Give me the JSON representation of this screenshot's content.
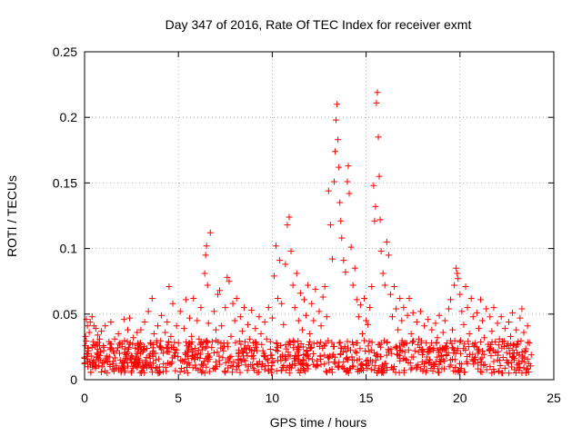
{
  "chart_data": {
    "type": "scatter",
    "title": "Day 347 of 2016, Rate Of TEC Index for receiver exmt",
    "xlabel": "GPS time / hours",
    "ylabel": "ROTI / TECUs",
    "xlim": [
      0,
      25
    ],
    "ylim": [
      0,
      0.25
    ],
    "x_ticks": [
      0,
      5,
      10,
      15,
      20,
      25
    ],
    "y_ticks": [
      0,
      0.05,
      0.1,
      0.15,
      0.2,
      0.25
    ],
    "y_tick_labels": [
      "0",
      "0.05",
      "0.1",
      "0.15",
      "0.2",
      "0.25"
    ],
    "x_tick_labels": [
      "0",
      "5",
      "10",
      "15",
      "20",
      "25"
    ],
    "grid": true,
    "marker": "plus",
    "color": "#ff0000",
    "series": [
      {
        "points": [
          [
            0.0,
            0.012
          ],
          [
            0.05,
            0.033
          ],
          [
            0.1,
            0.046
          ],
          [
            0.15,
            0.041
          ],
          [
            0.2,
            0.022
          ],
          [
            0.25,
            0.036
          ],
          [
            0.3,
            0.044
          ],
          [
            0.35,
            0.018
          ],
          [
            0.4,
            0.048
          ],
          [
            0.45,
            0.029
          ],
          [
            0.5,
            0.041
          ],
          [
            0.55,
            0.011
          ],
          [
            0.6,
            0.039
          ],
          [
            0.65,
            0.027
          ],
          [
            0.7,
            0.034
          ],
          [
            0.75,
            0.016
          ],
          [
            0.8,
            0.031
          ],
          [
            0.85,
            0.022
          ],
          [
            0.9,
            0.037
          ],
          [
            0.95,
            0.013
          ],
          [
            1.0,
            0.026
          ],
          [
            1.1,
            0.041
          ],
          [
            1.2,
            0.018
          ],
          [
            1.3,
            0.029
          ],
          [
            1.4,
            0.044
          ],
          [
            1.5,
            0.012
          ],
          [
            1.6,
            0.031
          ],
          [
            1.7,
            0.022
          ],
          [
            1.8,
            0.035
          ],
          [
            1.9,
            0.015
          ],
          [
            2.0,
            0.027
          ],
          [
            2.1,
            0.046
          ],
          [
            2.2,
            0.019
          ],
          [
            2.3,
            0.038
          ],
          [
            2.4,
            0.047
          ],
          [
            2.5,
            0.013
          ],
          [
            2.6,
            0.032
          ],
          [
            2.7,
            0.024
          ],
          [
            2.8,
            0.036
          ],
          [
            2.9,
            0.011
          ],
          [
            3.0,
            0.038
          ],
          [
            3.1,
            0.021
          ],
          [
            3.2,
            0.044
          ],
          [
            3.3,
            0.017
          ],
          [
            3.4,
            0.052
          ],
          [
            3.5,
            0.028
          ],
          [
            3.6,
            0.062
          ],
          [
            3.7,
            0.035
          ],
          [
            3.8,
            0.015
          ],
          [
            3.9,
            0.041
          ],
          [
            4.0,
            0.025
          ],
          [
            4.1,
            0.049
          ],
          [
            4.2,
            0.012
          ],
          [
            4.3,
            0.036
          ],
          [
            4.4,
            0.044
          ],
          [
            4.5,
            0.071
          ],
          [
            4.6,
            0.033
          ],
          [
            4.7,
            0.058
          ],
          [
            4.8,
            0.018
          ],
          [
            4.9,
            0.041
          ],
          [
            5.0,
            0.028
          ],
          [
            5.1,
            0.052
          ],
          [
            5.2,
            0.014
          ],
          [
            5.3,
            0.039
          ],
          [
            5.4,
            0.061
          ],
          [
            5.5,
            0.022
          ],
          [
            5.6,
            0.047
          ],
          [
            5.7,
            0.033
          ],
          [
            5.8,
            0.062
          ],
          [
            5.9,
            0.019
          ],
          [
            6.0,
            0.045
          ],
          [
            6.1,
            0.031
          ],
          [
            6.2,
            0.055
          ],
          [
            6.3,
            0.025
          ],
          [
            6.4,
            0.081
          ],
          [
            6.45,
            0.095
          ],
          [
            6.5,
            0.102
          ],
          [
            6.55,
            0.072
          ],
          [
            6.6,
            0.043
          ],
          [
            6.7,
            0.112
          ],
          [
            6.8,
            0.029
          ],
          [
            6.9,
            0.052
          ],
          [
            7.0,
            0.038
          ],
          [
            7.1,
            0.065
          ],
          [
            7.2,
            0.068
          ],
          [
            7.3,
            0.041
          ],
          [
            7.4,
            0.022
          ],
          [
            7.5,
            0.055
          ],
          [
            7.6,
            0.078
          ],
          [
            7.7,
            0.075
          ],
          [
            7.8,
            0.033
          ],
          [
            7.9,
            0.058
          ],
          [
            8.0,
            0.045
          ],
          [
            8.1,
            0.062
          ],
          [
            8.2,
            0.018
          ],
          [
            8.3,
            0.048
          ],
          [
            8.4,
            0.037
          ],
          [
            8.5,
            0.055
          ],
          [
            8.6,
            0.024
          ],
          [
            8.7,
            0.042
          ],
          [
            8.8,
            0.031
          ],
          [
            8.9,
            0.053
          ],
          [
            9.0,
            0.016
          ],
          [
            9.1,
            0.039
          ],
          [
            9.2,
            0.027
          ],
          [
            9.3,
            0.048
          ],
          [
            9.4,
            0.035
          ],
          [
            9.5,
            0.022
          ],
          [
            9.6,
            0.044
          ],
          [
            9.7,
            0.031
          ],
          [
            9.8,
            0.055
          ],
          [
            9.9,
            0.029
          ],
          [
            10.0,
            0.047
          ],
          [
            10.1,
            0.079
          ],
          [
            10.2,
            0.102
          ],
          [
            10.3,
            0.062
          ],
          [
            10.4,
            0.091
          ],
          [
            10.5,
            0.058
          ],
          [
            10.6,
            0.042
          ],
          [
            10.7,
            0.088
          ],
          [
            10.8,
            0.118
          ],
          [
            10.9,
            0.124
          ],
          [
            11.0,
            0.098
          ],
          [
            11.1,
            0.072
          ],
          [
            11.2,
            0.055
          ],
          [
            11.3,
            0.081
          ],
          [
            11.4,
            0.045
          ],
          [
            11.5,
            0.066
          ],
          [
            11.6,
            0.038
          ],
          [
            11.7,
            0.061
          ],
          [
            11.8,
            0.049
          ],
          [
            11.9,
            0.072
          ],
          [
            12.0,
            0.035
          ],
          [
            12.1,
            0.058
          ],
          [
            12.2,
            0.045
          ],
          [
            12.3,
            0.069
          ],
          [
            12.4,
            0.028
          ],
          [
            12.5,
            0.052
          ],
          [
            12.6,
            0.041
          ],
          [
            12.7,
            0.063
          ],
          [
            12.8,
            0.071
          ],
          [
            12.9,
            0.048
          ],
          [
            13.0,
            0.144
          ],
          [
            13.1,
            0.118
          ],
          [
            13.2,
            0.092
          ],
          [
            13.3,
            0.151
          ],
          [
            13.35,
            0.174
          ],
          [
            13.4,
            0.198
          ],
          [
            13.45,
            0.21
          ],
          [
            13.5,
            0.183
          ],
          [
            13.55,
            0.162
          ],
          [
            13.6,
            0.135
          ],
          [
            13.65,
            0.121
          ],
          [
            13.7,
            0.108
          ],
          [
            13.8,
            0.091
          ],
          [
            13.9,
            0.082
          ],
          [
            14.0,
            0.151
          ],
          [
            14.05,
            0.163
          ],
          [
            14.1,
            0.142
          ],
          [
            14.2,
            0.101
          ],
          [
            14.3,
            0.072
          ],
          [
            14.4,
            0.085
          ],
          [
            14.5,
            0.061
          ],
          [
            14.6,
            0.048
          ],
          [
            14.7,
            0.057
          ],
          [
            14.8,
            0.035
          ],
          [
            14.9,
            0.062
          ],
          [
            15.0,
            0.045
          ],
          [
            15.1,
            0.042
          ],
          [
            15.2,
            0.055
          ],
          [
            15.3,
            0.071
          ],
          [
            15.4,
            0.148
          ],
          [
            15.45,
            0.121
          ],
          [
            15.5,
            0.132
          ],
          [
            15.55,
            0.211
          ],
          [
            15.6,
            0.219
          ],
          [
            15.65,
            0.185
          ],
          [
            15.7,
            0.155
          ],
          [
            15.75,
            0.122
          ],
          [
            15.8,
            0.098
          ],
          [
            15.9,
            0.081
          ],
          [
            16.0,
            0.072
          ],
          [
            16.1,
            0.105
          ],
          [
            16.2,
            0.095
          ],
          [
            16.3,
            0.065
          ],
          [
            16.4,
            0.048
          ],
          [
            16.5,
            0.071
          ],
          [
            16.6,
            0.054
          ],
          [
            16.7,
            0.038
          ],
          [
            16.8,
            0.062
          ],
          [
            16.9,
            0.045
          ],
          [
            17.0,
            0.055
          ],
          [
            17.1,
            0.028
          ],
          [
            17.2,
            0.049
          ],
          [
            17.3,
            0.062
          ],
          [
            17.4,
            0.035
          ],
          [
            17.5,
            0.051
          ],
          [
            17.6,
            0.022
          ],
          [
            17.7,
            0.044
          ],
          [
            17.8,
            0.031
          ],
          [
            17.9,
            0.052
          ],
          [
            18.0,
            0.019
          ],
          [
            18.1,
            0.041
          ],
          [
            18.2,
            0.028
          ],
          [
            18.3,
            0.046
          ],
          [
            18.4,
            0.015
          ],
          [
            18.5,
            0.038
          ],
          [
            18.6,
            0.024
          ],
          [
            18.7,
            0.043
          ],
          [
            18.8,
            0.032
          ],
          [
            18.9,
            0.049
          ],
          [
            19.0,
            0.018
          ],
          [
            19.1,
            0.036
          ],
          [
            19.2,
            0.045
          ],
          [
            19.3,
            0.028
          ],
          [
            19.4,
            0.054
          ],
          [
            19.5,
            0.061
          ],
          [
            19.6,
            0.038
          ],
          [
            19.7,
            0.072
          ],
          [
            19.8,
            0.085
          ],
          [
            19.85,
            0.081
          ],
          [
            19.9,
            0.077
          ],
          [
            20.0,
            0.065
          ],
          [
            20.1,
            0.052
          ],
          [
            20.2,
            0.042
          ],
          [
            20.3,
            0.071
          ],
          [
            20.4,
            0.055
          ],
          [
            20.5,
            0.035
          ],
          [
            20.6,
            0.062
          ],
          [
            20.7,
            0.048
          ],
          [
            20.8,
            0.028
          ],
          [
            20.9,
            0.051
          ],
          [
            21.0,
            0.039
          ],
          [
            21.1,
            0.061
          ],
          [
            21.2,
            0.045
          ],
          [
            21.3,
            0.032
          ],
          [
            21.4,
            0.054
          ],
          [
            21.5,
            0.027
          ],
          [
            21.6,
            0.048
          ],
          [
            21.7,
            0.037
          ],
          [
            21.8,
            0.055
          ],
          [
            21.9,
            0.021
          ],
          [
            22.0,
            0.043
          ],
          [
            22.1,
            0.031
          ],
          [
            22.2,
            0.048
          ],
          [
            22.3,
            0.017
          ],
          [
            22.4,
            0.039
          ],
          [
            22.5,
            0.026
          ],
          [
            22.6,
            0.044
          ],
          [
            22.7,
            0.033
          ],
          [
            22.8,
            0.051
          ],
          [
            22.9,
            0.015
          ],
          [
            23.0,
            0.038
          ],
          [
            23.1,
            0.029
          ],
          [
            23.2,
            0.047
          ],
          [
            23.3,
            0.054
          ],
          [
            23.4,
            0.036
          ],
          [
            23.5,
            0.022
          ],
          [
            23.6,
            0.041
          ],
          [
            23.7,
            0.028
          ],
          [
            23.8,
            0.019
          ]
        ],
        "baseline_band": {
          "x_range": [
            0,
            23.8
          ],
          "y_range": [
            0.005,
            0.03
          ]
        }
      }
    ]
  }
}
